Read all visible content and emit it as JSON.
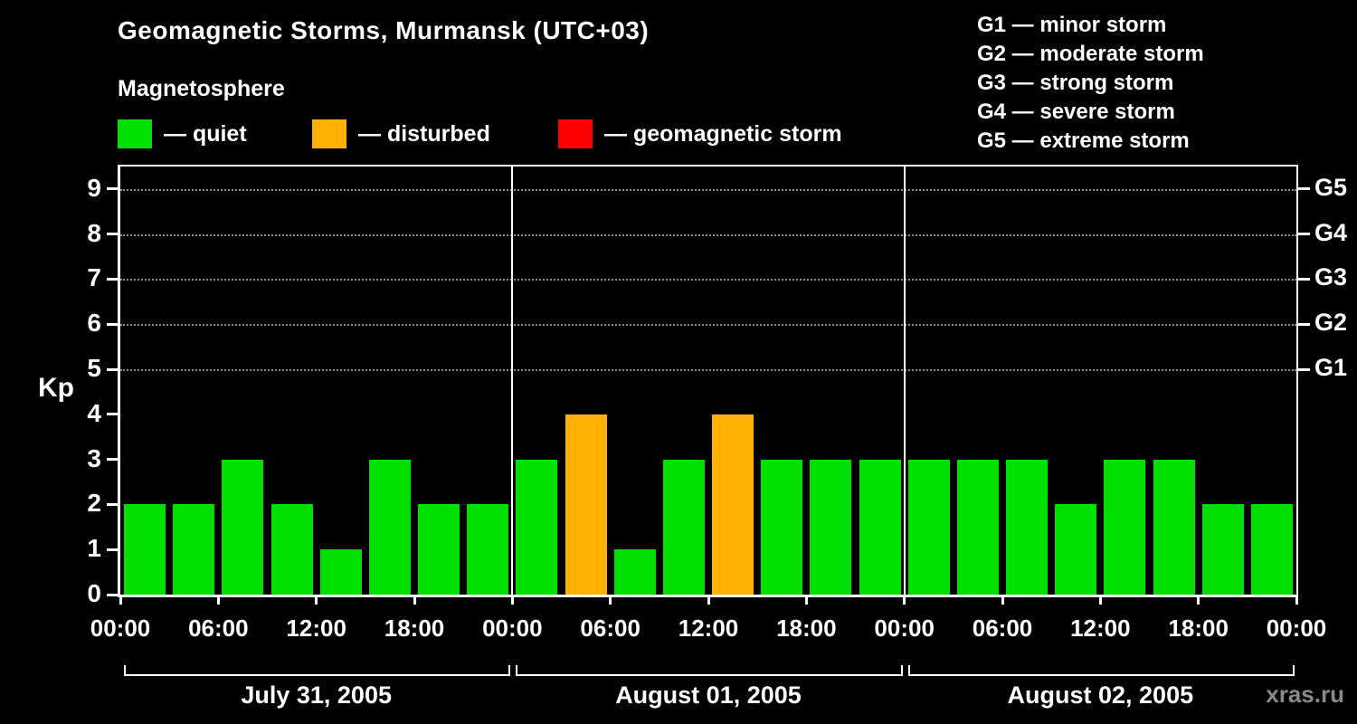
{
  "title": "Geomagnetic Storms, Murmansk (UTC+03)",
  "subtitle": "Magnetosphere",
  "legend": [
    {
      "name": "quiet",
      "label": "— quiet",
      "color": "#00e000"
    },
    {
      "name": "disturbed",
      "label": "— disturbed",
      "color": "#ffb000"
    },
    {
      "name": "storm",
      "label": "— geomagnetic storm",
      "color": "#ff0000"
    }
  ],
  "storm_scale": [
    {
      "code": "G1",
      "label": "minor storm",
      "kp": 5
    },
    {
      "code": "G2",
      "label": "moderate storm",
      "kp": 6
    },
    {
      "code": "G3",
      "label": "strong storm",
      "kp": 7
    },
    {
      "code": "G4",
      "label": "severe storm",
      "kp": 8
    },
    {
      "code": "G5",
      "label": "extreme storm",
      "kp": 9
    }
  ],
  "watermark": "xras.ru",
  "chart_data": {
    "type": "bar",
    "title": "Geomagnetic Storms, Murmansk (UTC+03)",
    "ylabel": "Kp",
    "ylim": [
      0,
      9.5
    ],
    "yticks": [
      0,
      1,
      2,
      3,
      4,
      5,
      6,
      7,
      8,
      9
    ],
    "gridlines_kp": [
      5,
      6,
      7,
      8,
      9
    ],
    "grid": "dotted horizontal at G-storm levels only",
    "legend_position": "top-left",
    "bar_interval_hours": 3,
    "x_tick_labels": [
      "00:00",
      "06:00",
      "12:00",
      "18:00",
      "00:00",
      "06:00",
      "12:00",
      "18:00",
      "00:00",
      "06:00",
      "12:00",
      "18:00",
      "00:00"
    ],
    "color_rule": {
      "quiet_max_kp": 3,
      "disturbed_kp": 4,
      "storm_min_kp": 5
    },
    "colors": {
      "quiet": "#00e000",
      "disturbed": "#ffb000",
      "storm": "#ff0000"
    },
    "days": [
      {
        "date": "July 31, 2005",
        "values": [
          2,
          2,
          3,
          2,
          1,
          3,
          2,
          2
        ]
      },
      {
        "date": "August 01, 2005",
        "values": [
          3,
          4,
          1,
          3,
          4,
          3,
          3,
          3
        ]
      },
      {
        "date": "August 02, 2005",
        "values": [
          3,
          3,
          3,
          2,
          3,
          3,
          2,
          2
        ]
      }
    ]
  }
}
